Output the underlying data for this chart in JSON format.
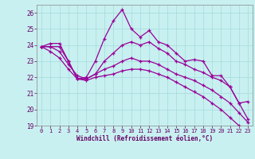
{
  "xlabel": "Windchill (Refroidissement éolien,°C)",
  "bg_color": "#c8f0f0",
  "grid_color": "#aadddd",
  "line_color": "#990099",
  "xlim": [
    -0.5,
    23.5
  ],
  "ylim": [
    19,
    26.5
  ],
  "yticks": [
    19,
    20,
    21,
    22,
    23,
    24,
    25,
    26
  ],
  "xticks": [
    0,
    1,
    2,
    3,
    4,
    5,
    6,
    7,
    8,
    9,
    10,
    11,
    12,
    13,
    14,
    15,
    16,
    17,
    18,
    19,
    20,
    21,
    22,
    23
  ],
  "series1_x": [
    0,
    1,
    2,
    3,
    4,
    5,
    6,
    7,
    8,
    9,
    10,
    11,
    12,
    13,
    14,
    15,
    16,
    17,
    18,
    19,
    20,
    21,
    22,
    23
  ],
  "series1_y": [
    23.9,
    24.1,
    24.1,
    23.0,
    21.9,
    22.0,
    23.0,
    24.4,
    25.5,
    26.2,
    25.0,
    24.5,
    24.9,
    24.2,
    24.0,
    23.5,
    23.0,
    23.1,
    23.0,
    22.1,
    22.1,
    21.4,
    20.4,
    20.5
  ],
  "series2_x": [
    0,
    1,
    2,
    3,
    4,
    5,
    6,
    7,
    8,
    9,
    10,
    11,
    12,
    13,
    14,
    15,
    16,
    17,
    18,
    19,
    20,
    21,
    22,
    23
  ],
  "series2_y": [
    23.9,
    23.9,
    23.9,
    23.0,
    21.9,
    21.9,
    22.2,
    23.0,
    23.5,
    24.0,
    24.2,
    24.0,
    24.2,
    23.8,
    23.5,
    23.0,
    22.8,
    22.5,
    22.3,
    22.0,
    21.8,
    21.4,
    20.4,
    19.4
  ],
  "series3_x": [
    0,
    1,
    2,
    3,
    4,
    5,
    6,
    7,
    8,
    9,
    10,
    11,
    12,
    13,
    14,
    15,
    16,
    17,
    18,
    19,
    20,
    21,
    22,
    23
  ],
  "series3_y": [
    23.9,
    23.9,
    23.6,
    22.8,
    22.1,
    21.9,
    22.2,
    22.5,
    22.7,
    23.0,
    23.2,
    23.0,
    23.0,
    22.8,
    22.5,
    22.2,
    22.0,
    21.8,
    21.5,
    21.2,
    20.8,
    20.4,
    19.8,
    19.2
  ],
  "series4_x": [
    0,
    1,
    2,
    3,
    4,
    5,
    6,
    7,
    8,
    9,
    10,
    11,
    12,
    13,
    14,
    15,
    16,
    17,
    18,
    19,
    20,
    21,
    22,
    23
  ],
  "series4_y": [
    23.9,
    23.6,
    23.2,
    22.5,
    21.9,
    21.8,
    22.0,
    22.1,
    22.2,
    22.4,
    22.5,
    22.5,
    22.4,
    22.2,
    22.0,
    21.7,
    21.4,
    21.1,
    20.8,
    20.4,
    20.0,
    19.5,
    19.0,
    18.5
  ]
}
